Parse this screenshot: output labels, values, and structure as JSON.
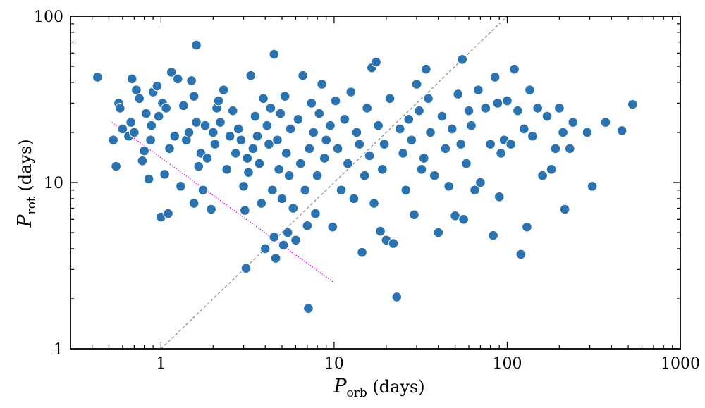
{
  "chart_data": {
    "type": "scatter",
    "title": "",
    "xlabel": {
      "symbol": "P",
      "subscript": "orb",
      "unit": " (days)"
    },
    "ylabel": {
      "symbol": "P",
      "subscript": "rot",
      "unit": "  (days)"
    },
    "xscale": "log",
    "yscale": "log",
    "xlim": [
      0.3,
      1000
    ],
    "ylim": [
      1,
      100
    ],
    "xticks": [
      {
        "value": 1,
        "label": "1"
      },
      {
        "value": 10,
        "label": "10"
      },
      {
        "value": 100,
        "label": "100"
      },
      {
        "value": 1000,
        "label": "1000"
      }
    ],
    "yticks": [
      {
        "value": 1,
        "label": "1"
      },
      {
        "value": 10,
        "label": "10"
      },
      {
        "value": 100,
        "label": "100"
      }
    ],
    "grid": false,
    "legend": "none",
    "colors": {
      "points": "#2b72b0",
      "point_edge": "#ffffff",
      "diagonal": "#808080",
      "magenta_line": "#ff00ff"
    },
    "lines": [
      {
        "style": "dashed",
        "color": "#808080",
        "x": [
          1,
          100
        ],
        "y": [
          1,
          100
        ]
      },
      {
        "style": "dotted",
        "color": "#ff00ff",
        "x": [
          0.52,
          10
        ],
        "y": [
          23,
          2.5
        ]
      }
    ],
    "points": [
      [
        0.43,
        43
      ],
      [
        0.53,
        18
      ],
      [
        0.55,
        12.5
      ],
      [
        0.57,
        30
      ],
      [
        0.58,
        28
      ],
      [
        0.6,
        21
      ],
      [
        0.65,
        19
      ],
      [
        0.67,
        23
      ],
      [
        0.68,
        42
      ],
      [
        0.7,
        20
      ],
      [
        0.72,
        36
      ],
      [
        0.75,
        32
      ],
      [
        0.78,
        13.5
      ],
      [
        0.8,
        15.5
      ],
      [
        0.82,
        26
      ],
      [
        0.85,
        10.5
      ],
      [
        0.87,
        18
      ],
      [
        0.88,
        22
      ],
      [
        0.9,
        35
      ],
      [
        0.95,
        38
      ],
      [
        0.97,
        25
      ],
      [
        1.0,
        6.2
      ],
      [
        1.02,
        30
      ],
      [
        1.05,
        11.2
      ],
      [
        1.07,
        28
      ],
      [
        1.1,
        6.5
      ],
      [
        1.12,
        16
      ],
      [
        1.15,
        46
      ],
      [
        1.2,
        19
      ],
      [
        1.25,
        42
      ],
      [
        1.3,
        9.5
      ],
      [
        1.35,
        29
      ],
      [
        1.4,
        18
      ],
      [
        1.45,
        20
      ],
      [
        1.5,
        41
      ],
      [
        1.55,
        33
      ],
      [
        1.6,
        23
      ],
      [
        1.65,
        12.5
      ],
      [
        1.7,
        15
      ],
      [
        1.75,
        9
      ],
      [
        1.8,
        22
      ],
      [
        1.85,
        14
      ],
      [
        1.6,
        67
      ],
      [
        1.55,
        7.5
      ],
      [
        1.95,
        6.9
      ],
      [
        2.0,
        20
      ],
      [
        2.05,
        17
      ],
      [
        2.1,
        28
      ],
      [
        2.15,
        31
      ],
      [
        2.2,
        23
      ],
      [
        2.3,
        36
      ],
      [
        2.4,
        12
      ],
      [
        2.5,
        19
      ],
      [
        2.6,
        27
      ],
      [
        2.7,
        15
      ],
      [
        2.8,
        21
      ],
      [
        2.9,
        18
      ],
      [
        3.0,
        9.5
      ],
      [
        3.05,
        6.8
      ],
      [
        3.1,
        3.05
      ],
      [
        3.15,
        14
      ],
      [
        3.2,
        11.5
      ],
      [
        3.3,
        44
      ],
      [
        3.4,
        16
      ],
      [
        3.5,
        25
      ],
      [
        3.6,
        19
      ],
      [
        3.7,
        13
      ],
      [
        3.8,
        7.5
      ],
      [
        3.9,
        32
      ],
      [
        4.0,
        4.0
      ],
      [
        4.1,
        22
      ],
      [
        4.2,
        17
      ],
      [
        4.3,
        28
      ],
      [
        4.4,
        9
      ],
      [
        4.5,
        4.7
      ],
      [
        4.6,
        3.5
      ],
      [
        4.5,
        59
      ],
      [
        4.7,
        18
      ],
      [
        4.8,
        12
      ],
      [
        4.9,
        26
      ],
      [
        5.0,
        8
      ],
      [
        5.1,
        4.2
      ],
      [
        5.2,
        33
      ],
      [
        5.3,
        15
      ],
      [
        5.4,
        5
      ],
      [
        5.5,
        11
      ],
      [
        5.6,
        21
      ],
      [
        5.8,
        7
      ],
      [
        6.0,
        4.5
      ],
      [
        6.2,
        24
      ],
      [
        6.4,
        13
      ],
      [
        6.6,
        44
      ],
      [
        6.8,
        9
      ],
      [
        7.0,
        5.5
      ],
      [
        7.1,
        1.75
      ],
      [
        7.2,
        16
      ],
      [
        7.4,
        30
      ],
      [
        7.6,
        20
      ],
      [
        7.8,
        6.5
      ],
      [
        8.0,
        11
      ],
      [
        8.2,
        26
      ],
      [
        8.5,
        39
      ],
      [
        8.8,
        14
      ],
      [
        9.0,
        18
      ],
      [
        9.5,
        22
      ],
      [
        9.8,
        5.4
      ],
      [
        10.2,
        31
      ],
      [
        10.5,
        16
      ],
      [
        11,
        9
      ],
      [
        11.5,
        24
      ],
      [
        12,
        13
      ],
      [
        12.5,
        35
      ],
      [
        13,
        8
      ],
      [
        13.5,
        20
      ],
      [
        14,
        17
      ],
      [
        14.5,
        3.8
      ],
      [
        15,
        11
      ],
      [
        15.5,
        28
      ],
      [
        16,
        14.5
      ],
      [
        16.5,
        49
      ],
      [
        17,
        7.5
      ],
      [
        17.5,
        53
      ],
      [
        18,
        22
      ],
      [
        18.5,
        5.1
      ],
      [
        19,
        12
      ],
      [
        19.5,
        17
      ],
      [
        20,
        4.5
      ],
      [
        21,
        32
      ],
      [
        22,
        4.3
      ],
      [
        23,
        2.05
      ],
      [
        24,
        21
      ],
      [
        25,
        15
      ],
      [
        26,
        9
      ],
      [
        27,
        24
      ],
      [
        28,
        18
      ],
      [
        29,
        6.4
      ],
      [
        30,
        39
      ],
      [
        31,
        27
      ],
      [
        32,
        12
      ],
      [
        33,
        14
      ],
      [
        34,
        48
      ],
      [
        35,
        32
      ],
      [
        36,
        20
      ],
      [
        38,
        11
      ],
      [
        40,
        5
      ],
      [
        42,
        25
      ],
      [
        44,
        16
      ],
      [
        46,
        9.5
      ],
      [
        48,
        21
      ],
      [
        50,
        6.3
      ],
      [
        52,
        34
      ],
      [
        54,
        17
      ],
      [
        55,
        55
      ],
      [
        56,
        6
      ],
      [
        58,
        13
      ],
      [
        60,
        27
      ],
      [
        62,
        22
      ],
      [
        65,
        9
      ],
      [
        68,
        36
      ],
      [
        70,
        10
      ],
      [
        75,
        28
      ],
      [
        80,
        17
      ],
      [
        83,
        4.8
      ],
      [
        85,
        43
      ],
      [
        88,
        30
      ],
      [
        90,
        8.2
      ],
      [
        92,
        15
      ],
      [
        96,
        18
      ],
      [
        100,
        31
      ],
      [
        105,
        17
      ],
      [
        110,
        48
      ],
      [
        115,
        27
      ],
      [
        120,
        3.7
      ],
      [
        125,
        21
      ],
      [
        130,
        5.4
      ],
      [
        135,
        36
      ],
      [
        140,
        19
      ],
      [
        150,
        28
      ],
      [
        160,
        11
      ],
      [
        170,
        25
      ],
      [
        180,
        12
      ],
      [
        190,
        16
      ],
      [
        200,
        28
      ],
      [
        210,
        20
      ],
      [
        215,
        6.9
      ],
      [
        230,
        16
      ],
      [
        240,
        23
      ],
      [
        290,
        20
      ],
      [
        310,
        9.5
      ],
      [
        370,
        23
      ],
      [
        460,
        20.5
      ],
      [
        530,
        29.5
      ]
    ]
  }
}
